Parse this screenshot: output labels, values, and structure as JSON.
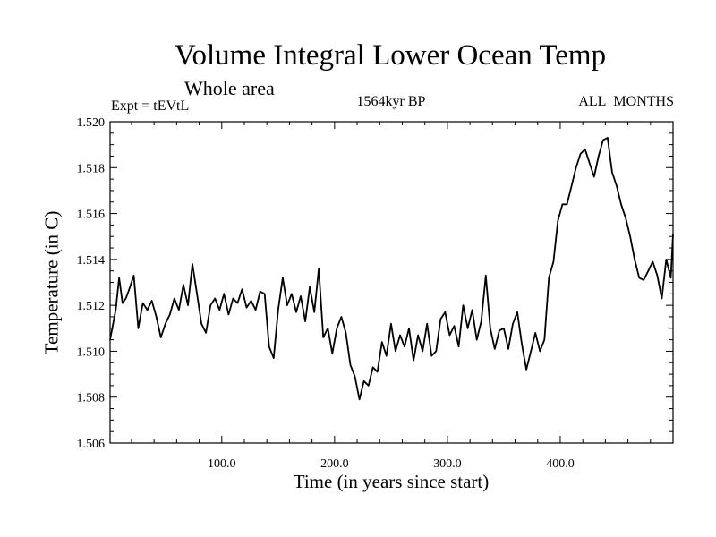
{
  "chart_data": {
    "type": "line",
    "title": "Volume Integral Lower Ocean Temp",
    "subtitle": "Whole area",
    "experiment_label": "Expt = tEVtL",
    "period_label": "1564kyr BP",
    "months_label": "ALL_MONTHS",
    "xlabel": "Time (in years since start)",
    "ylabel": "Temperature (in C)",
    "xlim": [
      1,
      500
    ],
    "ylim": [
      1.506,
      1.52
    ],
    "x_ticks": [
      100,
      200,
      300,
      400
    ],
    "x_tick_labels": [
      "100.0",
      "200.0",
      "300.0",
      "400.0"
    ],
    "y_ticks": [
      1.506,
      1.508,
      1.51,
      1.512,
      1.514,
      1.516,
      1.518,
      1.52
    ],
    "y_tick_labels": [
      "1.506",
      "1.508",
      "1.510",
      "1.512",
      "1.514",
      "1.516",
      "1.518",
      "1.520"
    ],
    "grid": false,
    "series": [
      {
        "name": "Volume Integral Lower Ocean Temp",
        "x": [
          1,
          6,
          9,
          12,
          15,
          18,
          22,
          26,
          30,
          34,
          38,
          42,
          46,
          50,
          54,
          58,
          62,
          66,
          70,
          74,
          78,
          82,
          86,
          90,
          94,
          98,
          102,
          106,
          110,
          114,
          118,
          122,
          126,
          130,
          134,
          138,
          142,
          146,
          150,
          154,
          158,
          162,
          166,
          170,
          174,
          178,
          182,
          186,
          190,
          194,
          198,
          202,
          206,
          210,
          214,
          218,
          222,
          226,
          230,
          234,
          238,
          242,
          246,
          250,
          254,
          258,
          262,
          266,
          270,
          274,
          278,
          282,
          286,
          290,
          294,
          298,
          302,
          306,
          310,
          314,
          318,
          322,
          326,
          330,
          334,
          338,
          342,
          346,
          350,
          354,
          358,
          362,
          366,
          370,
          374,
          378,
          382,
          386,
          390,
          394,
          398,
          402,
          406,
          410,
          414,
          418,
          422,
          426,
          430,
          434,
          438,
          442,
          446,
          450,
          454,
          458,
          462,
          466,
          470,
          474,
          478,
          482,
          486,
          490,
          494,
          498,
          500
        ],
        "values": [
          1.5105,
          1.5118,
          1.5132,
          1.5121,
          1.5123,
          1.5127,
          1.5133,
          1.511,
          1.5121,
          1.5118,
          1.5122,
          1.5115,
          1.5106,
          1.5112,
          1.5116,
          1.5123,
          1.5118,
          1.5129,
          1.512,
          1.5138,
          1.5125,
          1.5112,
          1.5108,
          1.512,
          1.5123,
          1.5118,
          1.5125,
          1.5116,
          1.5123,
          1.5121,
          1.5127,
          1.5119,
          1.5122,
          1.5118,
          1.5126,
          1.5125,
          1.5102,
          1.5097,
          1.5118,
          1.5132,
          1.512,
          1.5125,
          1.5117,
          1.5124,
          1.5113,
          1.5128,
          1.5117,
          1.5136,
          1.5106,
          1.511,
          1.5099,
          1.511,
          1.5115,
          1.5108,
          1.5094,
          1.5089,
          1.5079,
          1.5087,
          1.5085,
          1.5093,
          1.5091,
          1.5104,
          1.5098,
          1.5112,
          1.51,
          1.5107,
          1.5102,
          1.511,
          1.5096,
          1.5107,
          1.51,
          1.5112,
          1.5098,
          1.51,
          1.5114,
          1.5117,
          1.5107,
          1.5111,
          1.5102,
          1.512,
          1.511,
          1.5118,
          1.5105,
          1.5113,
          1.5133,
          1.511,
          1.5101,
          1.5109,
          1.511,
          1.5101,
          1.5112,
          1.5117,
          1.5103,
          1.5092,
          1.51,
          1.5108,
          1.51,
          1.5105,
          1.5132,
          1.5139,
          1.5157,
          1.5164,
          1.5164,
          1.5172,
          1.518,
          1.5186,
          1.5188,
          1.5182,
          1.5176,
          1.5185,
          1.5192,
          1.5193,
          1.5178,
          1.5172,
          1.5164,
          1.5158,
          1.515,
          1.514,
          1.5132,
          1.5131,
          1.5135,
          1.5139,
          1.5133,
          1.5123,
          1.514,
          1.5132,
          1.5151
        ]
      }
    ]
  }
}
